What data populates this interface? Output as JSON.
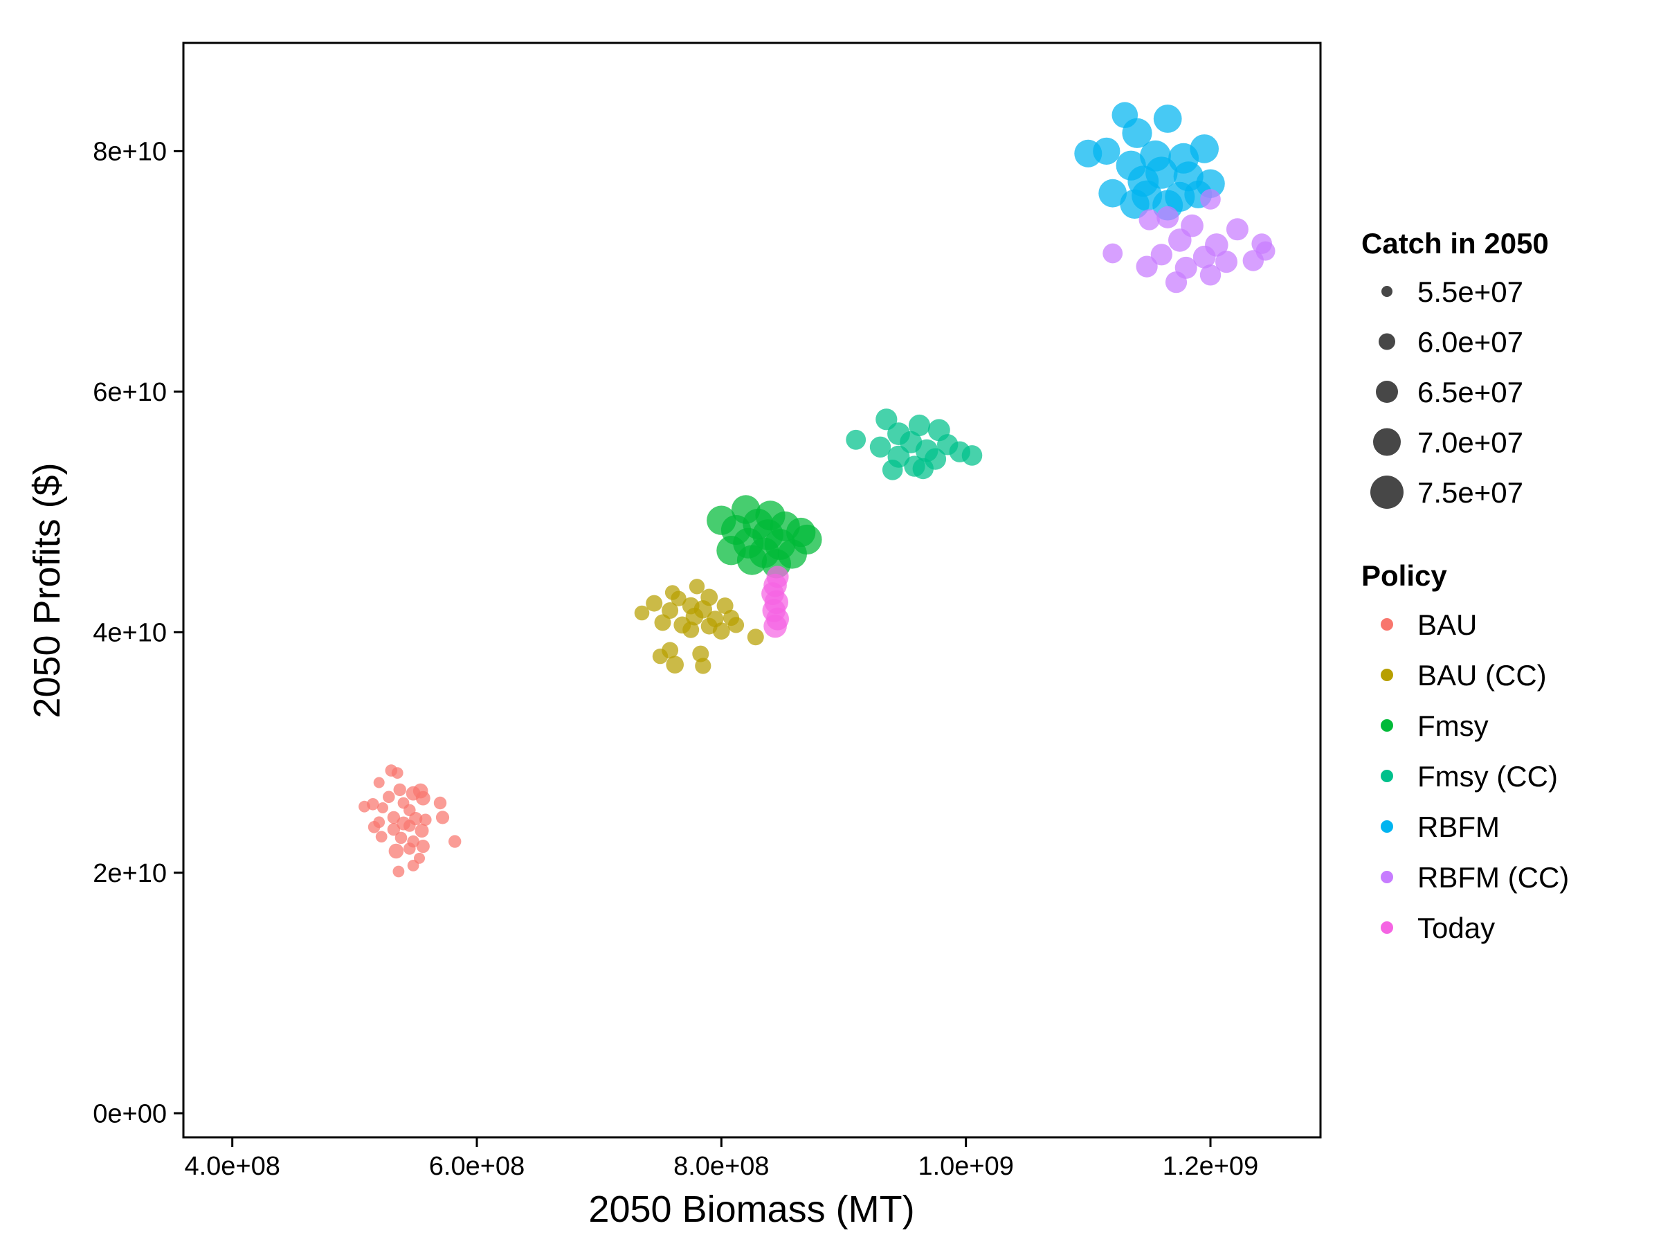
{
  "chart_data": {
    "type": "scatter",
    "title": "",
    "xlabel": "2050 Biomass (MT)",
    "ylabel": "2050 Profits ($)",
    "xlim": [
      360000000,
      1290000000
    ],
    "ylim": [
      -2000000000,
      89000000000
    ],
    "x_ticks": [
      {
        "value": 400000000,
        "label": "4.0e+08"
      },
      {
        "value": 600000000,
        "label": "6.0e+08"
      },
      {
        "value": 800000000,
        "label": "8.0e+08"
      },
      {
        "value": 1000000000,
        "label": "1.0e+09"
      },
      {
        "value": 1200000000,
        "label": "1.2e+09"
      }
    ],
    "y_ticks": [
      {
        "value": 0,
        "label": "0e+00"
      },
      {
        "value": 20000000000,
        "label": "2e+10"
      },
      {
        "value": 40000000000,
        "label": "4e+10"
      },
      {
        "value": 60000000000,
        "label": "6e+10"
      },
      {
        "value": 80000000000,
        "label": "8e+10"
      }
    ],
    "grid": false,
    "legend_position": "right",
    "size_legend": {
      "title": "Catch in 2050",
      "entries": [
        {
          "value": 55000000,
          "label": "5.5e+07"
        },
        {
          "value": 60000000,
          "label": "6.0e+07"
        },
        {
          "value": 65000000,
          "label": "6.5e+07"
        },
        {
          "value": 70000000,
          "label": "7.0e+07"
        },
        {
          "value": 75000000,
          "label": "7.5e+07"
        }
      ]
    },
    "color_legend": {
      "title": "Policy"
    },
    "series": [
      {
        "name": "BAU",
        "color": "#F8766D",
        "points": [
          {
            "x": 530000000,
            "y": 28500000000,
            "catch": 56000000
          },
          {
            "x": 535000000,
            "y": 28300000000,
            "catch": 55500000
          },
          {
            "x": 520000000,
            "y": 27500000000,
            "catch": 55000000
          },
          {
            "x": 537000000,
            "y": 26900000000,
            "catch": 56500000
          },
          {
            "x": 548000000,
            "y": 26600000000,
            "catch": 58000000
          },
          {
            "x": 554000000,
            "y": 26800000000,
            "catch": 58500000
          },
          {
            "x": 556000000,
            "y": 26200000000,
            "catch": 58000000
          },
          {
            "x": 528000000,
            "y": 26300000000,
            "catch": 56000000
          },
          {
            "x": 508000000,
            "y": 25500000000,
            "catch": 55500000
          },
          {
            "x": 515000000,
            "y": 25700000000,
            "catch": 56000000
          },
          {
            "x": 540000000,
            "y": 25800000000,
            "catch": 55500000
          },
          {
            "x": 523000000,
            "y": 25400000000,
            "catch": 55000000
          },
          {
            "x": 570000000,
            "y": 25800000000,
            "catch": 56500000
          },
          {
            "x": 545000000,
            "y": 25200000000,
            "catch": 56000000
          },
          {
            "x": 532000000,
            "y": 24600000000,
            "catch": 56500000
          },
          {
            "x": 550000000,
            "y": 24500000000,
            "catch": 57000000
          },
          {
            "x": 558000000,
            "y": 24400000000,
            "catch": 56000000
          },
          {
            "x": 572000000,
            "y": 24600000000,
            "catch": 57000000
          },
          {
            "x": 520000000,
            "y": 24200000000,
            "catch": 55500000
          },
          {
            "x": 540000000,
            "y": 24100000000,
            "catch": 57500000
          },
          {
            "x": 516000000,
            "y": 23800000000,
            "catch": 56000000
          },
          {
            "x": 545000000,
            "y": 23900000000,
            "catch": 56000000
          },
          {
            "x": 532000000,
            "y": 23600000000,
            "catch": 56500000
          },
          {
            "x": 555000000,
            "y": 23500000000,
            "catch": 57500000
          },
          {
            "x": 522000000,
            "y": 23000000000,
            "catch": 55500000
          },
          {
            "x": 538000000,
            "y": 22900000000,
            "catch": 56000000
          },
          {
            "x": 548000000,
            "y": 22600000000,
            "catch": 56000000
          },
          {
            "x": 556000000,
            "y": 22200000000,
            "catch": 57000000
          },
          {
            "x": 582000000,
            "y": 22600000000,
            "catch": 56500000
          },
          {
            "x": 534000000,
            "y": 21800000000,
            "catch": 58500000
          },
          {
            "x": 545000000,
            "y": 22000000000,
            "catch": 56000000
          },
          {
            "x": 553000000,
            "y": 21200000000,
            "catch": 54500000
          },
          {
            "x": 548000000,
            "y": 20600000000,
            "catch": 55500000
          },
          {
            "x": 536000000,
            "y": 20100000000,
            "catch": 55500000
          }
        ]
      },
      {
        "name": "BAU (CC)",
        "color": "#B79F00",
        "points": [
          {
            "x": 780000000,
            "y": 43800000000,
            "catch": 59000000
          },
          {
            "x": 760000000,
            "y": 43300000000,
            "catch": 58500000
          },
          {
            "x": 765000000,
            "y": 42800000000,
            "catch": 59000000
          },
          {
            "x": 790000000,
            "y": 42900000000,
            "catch": 60500000
          },
          {
            "x": 745000000,
            "y": 42400000000,
            "catch": 60000000
          },
          {
            "x": 775000000,
            "y": 42200000000,
            "catch": 60500000
          },
          {
            "x": 803000000,
            "y": 42200000000,
            "catch": 60000000
          },
          {
            "x": 735000000,
            "y": 41600000000,
            "catch": 58500000
          },
          {
            "x": 758000000,
            "y": 41800000000,
            "catch": 60000000
          },
          {
            "x": 785000000,
            "y": 41900000000,
            "catch": 61500000
          },
          {
            "x": 778000000,
            "y": 41300000000,
            "catch": 61000000
          },
          {
            "x": 795000000,
            "y": 41100000000,
            "catch": 60000000
          },
          {
            "x": 808000000,
            "y": 41200000000,
            "catch": 59500000
          },
          {
            "x": 752000000,
            "y": 40800000000,
            "catch": 60000000
          },
          {
            "x": 768000000,
            "y": 40600000000,
            "catch": 60500000
          },
          {
            "x": 790000000,
            "y": 40500000000,
            "catch": 60000000
          },
          {
            "x": 812000000,
            "y": 40600000000,
            "catch": 59500000
          },
          {
            "x": 775000000,
            "y": 40200000000,
            "catch": 60000000
          },
          {
            "x": 800000000,
            "y": 40100000000,
            "catch": 60500000
          },
          {
            "x": 828000000,
            "y": 39600000000,
            "catch": 60000000
          },
          {
            "x": 758000000,
            "y": 38500000000,
            "catch": 60000000
          },
          {
            "x": 750000000,
            "y": 38000000000,
            "catch": 59000000
          },
          {
            "x": 783000000,
            "y": 38200000000,
            "catch": 60000000
          },
          {
            "x": 762000000,
            "y": 37300000000,
            "catch": 61000000
          },
          {
            "x": 785000000,
            "y": 37200000000,
            "catch": 59500000
          }
        ]
      },
      {
        "name": "Fmsy",
        "color": "#00BA38",
        "points": [
          {
            "x": 820000000,
            "y": 50200000000,
            "catch": 71000000
          },
          {
            "x": 840000000,
            "y": 49700000000,
            "catch": 72000000
          },
          {
            "x": 800000000,
            "y": 49300000000,
            "catch": 71500000
          },
          {
            "x": 830000000,
            "y": 49000000000,
            "catch": 72500000
          },
          {
            "x": 852000000,
            "y": 48800000000,
            "catch": 72000000
          },
          {
            "x": 865000000,
            "y": 48300000000,
            "catch": 71500000
          },
          {
            "x": 812000000,
            "y": 48500000000,
            "catch": 72000000
          },
          {
            "x": 838000000,
            "y": 48100000000,
            "catch": 73000000
          },
          {
            "x": 870000000,
            "y": 47700000000,
            "catch": 72000000
          },
          {
            "x": 822000000,
            "y": 47400000000,
            "catch": 72500000
          },
          {
            "x": 848000000,
            "y": 47300000000,
            "catch": 73000000
          },
          {
            "x": 808000000,
            "y": 46800000000,
            "catch": 71500000
          },
          {
            "x": 835000000,
            "y": 46600000000,
            "catch": 72500000
          },
          {
            "x": 858000000,
            "y": 46500000000,
            "catch": 71500000
          },
          {
            "x": 825000000,
            "y": 46000000000,
            "catch": 72000000
          },
          {
            "x": 845000000,
            "y": 45700000000,
            "catch": 71500000
          }
        ]
      },
      {
        "name": "Fmsy (CC)",
        "color": "#00C08B",
        "points": [
          {
            "x": 935000000,
            "y": 57700000000,
            "catch": 64500000
          },
          {
            "x": 962000000,
            "y": 57200000000,
            "catch": 64500000
          },
          {
            "x": 978000000,
            "y": 56800000000,
            "catch": 65000000
          },
          {
            "x": 945000000,
            "y": 56500000000,
            "catch": 65500000
          },
          {
            "x": 910000000,
            "y": 56000000000,
            "catch": 63000000
          },
          {
            "x": 955000000,
            "y": 55800000000,
            "catch": 65000000
          },
          {
            "x": 985000000,
            "y": 55600000000,
            "catch": 64000000
          },
          {
            "x": 930000000,
            "y": 55400000000,
            "catch": 64000000
          },
          {
            "x": 968000000,
            "y": 55100000000,
            "catch": 65500000
          },
          {
            "x": 995000000,
            "y": 55000000000,
            "catch": 64000000
          },
          {
            "x": 1005000000,
            "y": 54700000000,
            "catch": 63500000
          },
          {
            "x": 945000000,
            "y": 54600000000,
            "catch": 65000000
          },
          {
            "x": 975000000,
            "y": 54400000000,
            "catch": 64500000
          },
          {
            "x": 958000000,
            "y": 53800000000,
            "catch": 64000000
          },
          {
            "x": 940000000,
            "y": 53500000000,
            "catch": 63500000
          },
          {
            "x": 965000000,
            "y": 53600000000,
            "catch": 64000000
          }
        ]
      },
      {
        "name": "RBFM",
        "color": "#00B4F0",
        "points": [
          {
            "x": 1130000000,
            "y": 83000000000,
            "catch": 68500000
          },
          {
            "x": 1165000000,
            "y": 82700000000,
            "catch": 70500000
          },
          {
            "x": 1140000000,
            "y": 81500000000,
            "catch": 72000000
          },
          {
            "x": 1195000000,
            "y": 80200000000,
            "catch": 71000000
          },
          {
            "x": 1115000000,
            "y": 80000000000,
            "catch": 69500000
          },
          {
            "x": 1100000000,
            "y": 79800000000,
            "catch": 70000000
          },
          {
            "x": 1155000000,
            "y": 79600000000,
            "catch": 73000000
          },
          {
            "x": 1178000000,
            "y": 79400000000,
            "catch": 72500000
          },
          {
            "x": 1135000000,
            "y": 78800000000,
            "catch": 72000000
          },
          {
            "x": 1160000000,
            "y": 78200000000,
            "catch": 74000000
          },
          {
            "x": 1182000000,
            "y": 77900000000,
            "catch": 72000000
          },
          {
            "x": 1145000000,
            "y": 77500000000,
            "catch": 73000000
          },
          {
            "x": 1200000000,
            "y": 77300000000,
            "catch": 71000000
          },
          {
            "x": 1120000000,
            "y": 76500000000,
            "catch": 70500000
          },
          {
            "x": 1148000000,
            "y": 76300000000,
            "catch": 72500000
          },
          {
            "x": 1175000000,
            "y": 76200000000,
            "catch": 72000000
          },
          {
            "x": 1190000000,
            "y": 76400000000,
            "catch": 70000000
          },
          {
            "x": 1138000000,
            "y": 75600000000,
            "catch": 71500000
          },
          {
            "x": 1165000000,
            "y": 75500000000,
            "catch": 72500000
          }
        ]
      },
      {
        "name": "RBFM (CC)",
        "color": "#C77CFF",
        "points": [
          {
            "x": 1200000000,
            "y": 76000000000,
            "catch": 63500000
          },
          {
            "x": 1165000000,
            "y": 74500000000,
            "catch": 65000000
          },
          {
            "x": 1150000000,
            "y": 74300000000,
            "catch": 64000000
          },
          {
            "x": 1185000000,
            "y": 73800000000,
            "catch": 65500000
          },
          {
            "x": 1222000000,
            "y": 73500000000,
            "catch": 65000000
          },
          {
            "x": 1242000000,
            "y": 72300000000,
            "catch": 63500000
          },
          {
            "x": 1175000000,
            "y": 72600000000,
            "catch": 66000000
          },
          {
            "x": 1205000000,
            "y": 72200000000,
            "catch": 66000000
          },
          {
            "x": 1120000000,
            "y": 71500000000,
            "catch": 63000000
          },
          {
            "x": 1160000000,
            "y": 71400000000,
            "catch": 64500000
          },
          {
            "x": 1195000000,
            "y": 71200000000,
            "catch": 65500000
          },
          {
            "x": 1245000000,
            "y": 71700000000,
            "catch": 62500000
          },
          {
            "x": 1213000000,
            "y": 70800000000,
            "catch": 65000000
          },
          {
            "x": 1235000000,
            "y": 70900000000,
            "catch": 64000000
          },
          {
            "x": 1148000000,
            "y": 70400000000,
            "catch": 64500000
          },
          {
            "x": 1180000000,
            "y": 70300000000,
            "catch": 65000000
          },
          {
            "x": 1200000000,
            "y": 69700000000,
            "catch": 64000000
          },
          {
            "x": 1172000000,
            "y": 69100000000,
            "catch": 64500000
          }
        ]
      },
      {
        "name": "Today",
        "color": "#F564E3",
        "points": [
          {
            "x": 846000000,
            "y": 44600000000,
            "catch": 65000000
          },
          {
            "x": 844000000,
            "y": 43900000000,
            "catch": 66000000
          },
          {
            "x": 842000000,
            "y": 43200000000,
            "catch": 65500000
          },
          {
            "x": 845000000,
            "y": 42500000000,
            "catch": 66500000
          },
          {
            "x": 843000000,
            "y": 41800000000,
            "catch": 66000000
          },
          {
            "x": 846000000,
            "y": 41100000000,
            "catch": 65500000
          },
          {
            "x": 844000000,
            "y": 40500000000,
            "catch": 66000000
          }
        ]
      }
    ]
  }
}
